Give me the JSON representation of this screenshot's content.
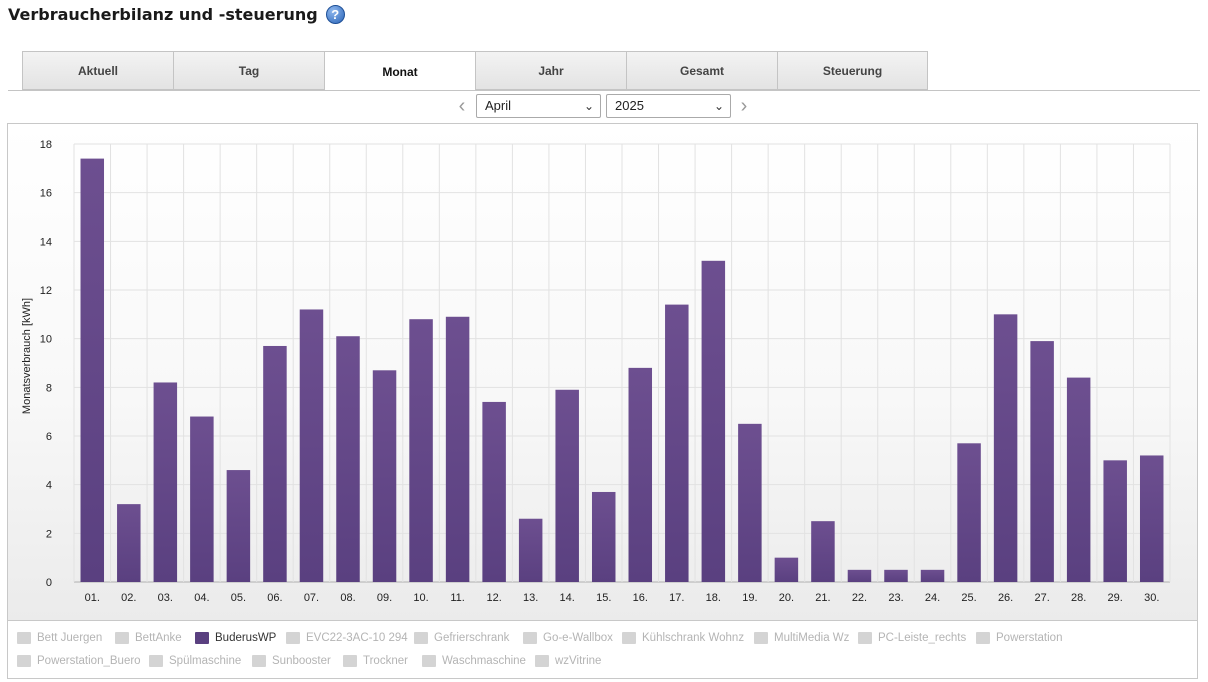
{
  "header": {
    "title": "Verbraucherbilanz und -steuerung",
    "help_icon": "help-icon"
  },
  "tabs": [
    {
      "label": "Aktuell",
      "active": false
    },
    {
      "label": "Tag",
      "active": false
    },
    {
      "label": "Monat",
      "active": true
    },
    {
      "label": "Jahr",
      "active": false
    },
    {
      "label": "Gesamt",
      "active": false
    },
    {
      "label": "Steuerung",
      "active": false
    }
  ],
  "period": {
    "month": "April",
    "year": "2025",
    "prev_icon": "chevron-left-icon",
    "next_icon": "chevron-right-icon"
  },
  "chart_data": {
    "type": "bar",
    "ylabel": "Monatsverbrauch [kWh]",
    "ylim": [
      0,
      18
    ],
    "yticks": [
      0,
      2,
      4,
      6,
      8,
      10,
      12,
      14,
      16,
      18
    ],
    "categories": [
      "01.",
      "02.",
      "03.",
      "04.",
      "05.",
      "06.",
      "07.",
      "08.",
      "09.",
      "10.",
      "11.",
      "12.",
      "13.",
      "14.",
      "15.",
      "16.",
      "17.",
      "18.",
      "19.",
      "20.",
      "21.",
      "22.",
      "23.",
      "24.",
      "25.",
      "26.",
      "27.",
      "28.",
      "29.",
      "30."
    ],
    "series": [
      {
        "name": "BuderusWP",
        "color": "#5a4080",
        "values": [
          17.4,
          3.2,
          8.2,
          6.8,
          4.6,
          9.7,
          11.2,
          10.1,
          8.7,
          10.8,
          10.9,
          7.4,
          2.6,
          7.9,
          3.7,
          8.8,
          11.4,
          13.2,
          6.5,
          1.0,
          2.5,
          0.5,
          0.5,
          0.5,
          5.7,
          11.0,
          9.9,
          8.4,
          5.0,
          5.2
        ]
      }
    ],
    "grid": true,
    "legend_position": "bottom"
  },
  "legend": [
    {
      "label": "Bett Juergen",
      "active": false
    },
    {
      "label": "BettAnke",
      "active": false
    },
    {
      "label": "BuderusWP",
      "active": true
    },
    {
      "label": "EVC22-3AC-10 294",
      "active": false
    },
    {
      "label": "Gefrierschrank",
      "active": false
    },
    {
      "label": "Go-e-Wallbox",
      "active": false
    },
    {
      "label": "Kühlschrank Wohnz",
      "active": false
    },
    {
      "label": "MultiMedia Wz",
      "active": false
    },
    {
      "label": "PC-Leiste_rechts",
      "active": false
    },
    {
      "label": "Powerstation",
      "active": false
    },
    {
      "label": "Powerstation_Buero",
      "active": false
    },
    {
      "label": "Spülmaschine",
      "active": false
    },
    {
      "label": "Sunbooster",
      "active": false
    },
    {
      "label": "Trockner",
      "active": false
    },
    {
      "label": "Waschmaschine",
      "active": false
    },
    {
      "label": "wzVitrine",
      "active": false
    }
  ]
}
